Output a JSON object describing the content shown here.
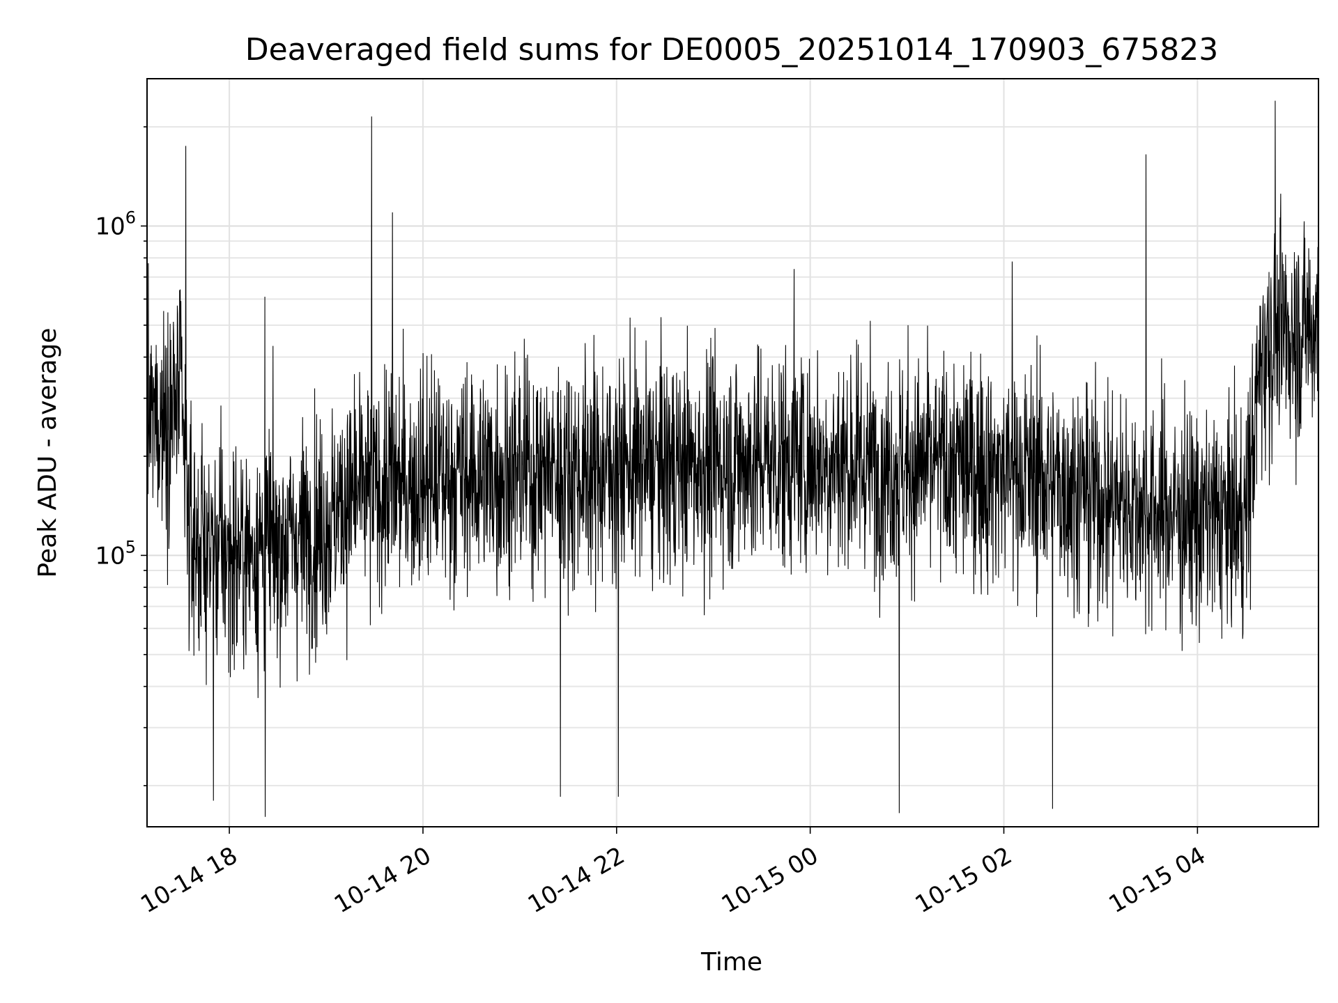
{
  "chart_data": {
    "type": "line",
    "title": "Deaveraged field sums for DE0005_20251014_170903_675823",
    "xlabel": "Time",
    "ylabel": "Peak ADU - average",
    "yscale": "log",
    "xlim": [
      "10-14 17:09",
      "10-15 05:15"
    ],
    "ylim": [
      15000,
      2800000
    ],
    "grid": true,
    "line_color": "#000000",
    "x_ticks": [
      "10-14 18",
      "10-14 20",
      "10-14 22",
      "10-15 00",
      "10-15 02",
      "10-15 04"
    ],
    "y_major_ticks": [
      {
        "value": 100000,
        "base": "10",
        "exp": "5"
      },
      {
        "value": 1000000,
        "base": "10",
        "exp": "6"
      }
    ],
    "series": [
      {
        "name": "",
        "x": [
          "10-14 17:09",
          "10-14 17:20",
          "10-14 17:30",
          "10-14 17:35",
          "10-14 17:40",
          "10-14 17:50",
          "10-14 18:00",
          "10-14 18:15",
          "10-14 18:30",
          "10-14 18:45",
          "10-14 19:00",
          "10-14 19:15",
          "10-14 19:30",
          "10-14 19:45",
          "10-14 20:00",
          "10-14 20:30",
          "10-14 21:00",
          "10-14 21:30",
          "10-14 22:00",
          "10-14 22:30",
          "10-14 23:00",
          "10-14 23:30",
          "10-15 00:00",
          "10-15 00:30",
          "10-15 01:00",
          "10-15 01:30",
          "10-15 02:00",
          "10-15 02:30",
          "10-15 03:00",
          "10-15 03:30",
          "10-15 04:00",
          "10-15 04:30",
          "10-15 04:40",
          "10-15 04:45",
          "10-15 05:00",
          "10-15 05:15"
        ],
        "values": [
          250000,
          270000,
          300000,
          120000,
          110000,
          105000,
          100000,
          105000,
          110000,
          115000,
          125000,
          150000,
          160000,
          165000,
          170000,
          175000,
          180000,
          180000,
          185000,
          185000,
          190000,
          195000,
          195000,
          190000,
          185000,
          185000,
          180000,
          170000,
          150000,
          140000,
          130000,
          130000,
          420000,
          450000,
          480000,
          500000
        ]
      }
    ],
    "spikes": [
      {
        "x": "10-14 17:33",
        "value": 1750000
      },
      {
        "x": "10-14 19:28",
        "value": 2150000
      },
      {
        "x": "10-14 19:41",
        "value": 1100000
      },
      {
        "x": "10-14 18:22",
        "value": 610000
      },
      {
        "x": "10-14 23:50",
        "value": 740000
      },
      {
        "x": "10-15 03:28",
        "value": 1650000
      },
      {
        "x": "10-15 04:48",
        "value": 2400000
      },
      {
        "x": "10-15 02:05",
        "value": 780000
      },
      {
        "x": "10-14 18:22",
        "value": 16000
      },
      {
        "x": "10-15 00:55",
        "value": 16500
      },
      {
        "x": "10-15 02:30",
        "value": 17000
      },
      {
        "x": "10-14 17:50",
        "value": 18000
      },
      {
        "x": "10-14 21:25",
        "value": 18500
      },
      {
        "x": "10-14 22:01",
        "value": 18500
      }
    ]
  }
}
